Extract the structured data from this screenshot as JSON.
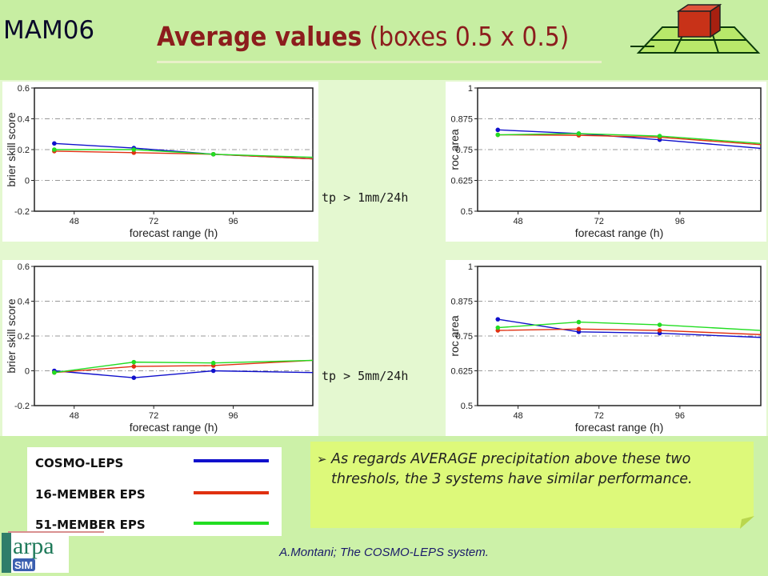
{
  "header": {
    "label": "MAM06",
    "title_bold": "Average values",
    "title_rest": " (boxes 0.5 x 0.5)"
  },
  "thresholds": [
    "tp > 1mm/24h",
    "tp > 5mm/24h"
  ],
  "colors": {
    "cosmo_leps": "#1010cc",
    "eps16": "#e03010",
    "eps51": "#22dd22"
  },
  "legend": {
    "items": [
      {
        "label": "COSMO-LEPS",
        "color": "#1010cc"
      },
      {
        "label": "16-MEMBER EPS",
        "color": "#e03010"
      },
      {
        "label": "51-MEMBER EPS",
        "color": "#22dd22"
      }
    ]
  },
  "note": {
    "text": "As regards AVERAGE precipitation above these two threshols, the 3 systems have similar performance."
  },
  "footer": {
    "text": "A.Montani; The COSMO-LEPS system."
  },
  "logo": {
    "text": "arpa",
    "subtext": "SIM"
  },
  "chart_data": [
    {
      "type": "line",
      "threshold": "tp > 1mm/24h",
      "xlabel": "forecast range (h)",
      "ylabel": "brier skill score",
      "xlim": [
        36,
        120
      ],
      "ylim": [
        -0.2,
        0.6
      ],
      "xticks": [
        "48",
        "72",
        "96"
      ],
      "yticks": [
        "-0.2",
        "0",
        "0.2",
        "0.4",
        "0.6"
      ],
      "grid": "dashed at y ticks",
      "series": [
        {
          "color": "#1010cc",
          "x": [
            42,
            66,
            90,
            120
          ],
          "y": [
            0.24,
            0.21,
            0.17,
            0.14
          ]
        },
        {
          "color": "#e03010",
          "x": [
            42,
            66,
            90,
            120
          ],
          "y": [
            0.19,
            0.18,
            0.17,
            0.14
          ]
        },
        {
          "color": "#22dd22",
          "x": [
            42,
            66,
            90,
            120
          ],
          "y": [
            0.2,
            0.2,
            0.17,
            0.15
          ]
        }
      ]
    },
    {
      "type": "line",
      "threshold": "tp > 1mm/24h",
      "xlabel": "forecast range (h)",
      "ylabel": "roc area",
      "xlim": [
        36,
        120
      ],
      "ylim": [
        0.5,
        1.0
      ],
      "xticks": [
        "48",
        "72",
        "96"
      ],
      "yticks": [
        "0.5",
        "0.625",
        "0.75",
        "0.875",
        "1"
      ],
      "grid": "dashed at y ticks",
      "series": [
        {
          "color": "#1010cc",
          "x": [
            42,
            66,
            90,
            120
          ],
          "y": [
            0.83,
            0.815,
            0.79,
            0.755
          ]
        },
        {
          "color": "#e03010",
          "x": [
            42,
            66,
            90,
            120
          ],
          "y": [
            0.81,
            0.808,
            0.8,
            0.77
          ]
        },
        {
          "color": "#22dd22",
          "x": [
            42,
            66,
            90,
            120
          ],
          "y": [
            0.81,
            0.815,
            0.805,
            0.775
          ]
        }
      ]
    },
    {
      "type": "line",
      "threshold": "tp > 5mm/24h",
      "xlabel": "forecast range (h)",
      "ylabel": "brier skill score",
      "xlim": [
        36,
        120
      ],
      "ylim": [
        -0.2,
        0.6
      ],
      "xticks": [
        "48",
        "72",
        "96"
      ],
      "yticks": [
        "-0.2",
        "0",
        "0.2",
        "0.4",
        "0.6"
      ],
      "grid": "dashed at y ticks",
      "series": [
        {
          "color": "#1010cc",
          "x": [
            42,
            66,
            90,
            120
          ],
          "y": [
            0.0,
            -0.04,
            0.0,
            -0.01
          ]
        },
        {
          "color": "#e03010",
          "x": [
            42,
            66,
            90,
            120
          ],
          "y": [
            -0.01,
            0.025,
            0.03,
            0.06
          ]
        },
        {
          "color": "#22dd22",
          "x": [
            42,
            66,
            90,
            120
          ],
          "y": [
            -0.01,
            0.05,
            0.045,
            0.06
          ]
        }
      ]
    },
    {
      "type": "line",
      "threshold": "tp > 5mm/24h",
      "xlabel": "forecast range (h)",
      "ylabel": "roc area",
      "xlim": [
        36,
        120
      ],
      "ylim": [
        0.5,
        1.0
      ],
      "xticks": [
        "48",
        "72",
        "96"
      ],
      "yticks": [
        "0.5",
        "0.625",
        "0.75",
        "0.875",
        "1"
      ],
      "grid": "dashed at y ticks",
      "series": [
        {
          "color": "#1010cc",
          "x": [
            42,
            66,
            90,
            120
          ],
          "y": [
            0.81,
            0.765,
            0.76,
            0.745
          ]
        },
        {
          "color": "#e03010",
          "x": [
            42,
            66,
            90,
            120
          ],
          "y": [
            0.77,
            0.775,
            0.77,
            0.755
          ]
        },
        {
          "color": "#22dd22",
          "x": [
            42,
            66,
            90,
            120
          ],
          "y": [
            0.78,
            0.8,
            0.79,
            0.77
          ]
        }
      ]
    }
  ]
}
